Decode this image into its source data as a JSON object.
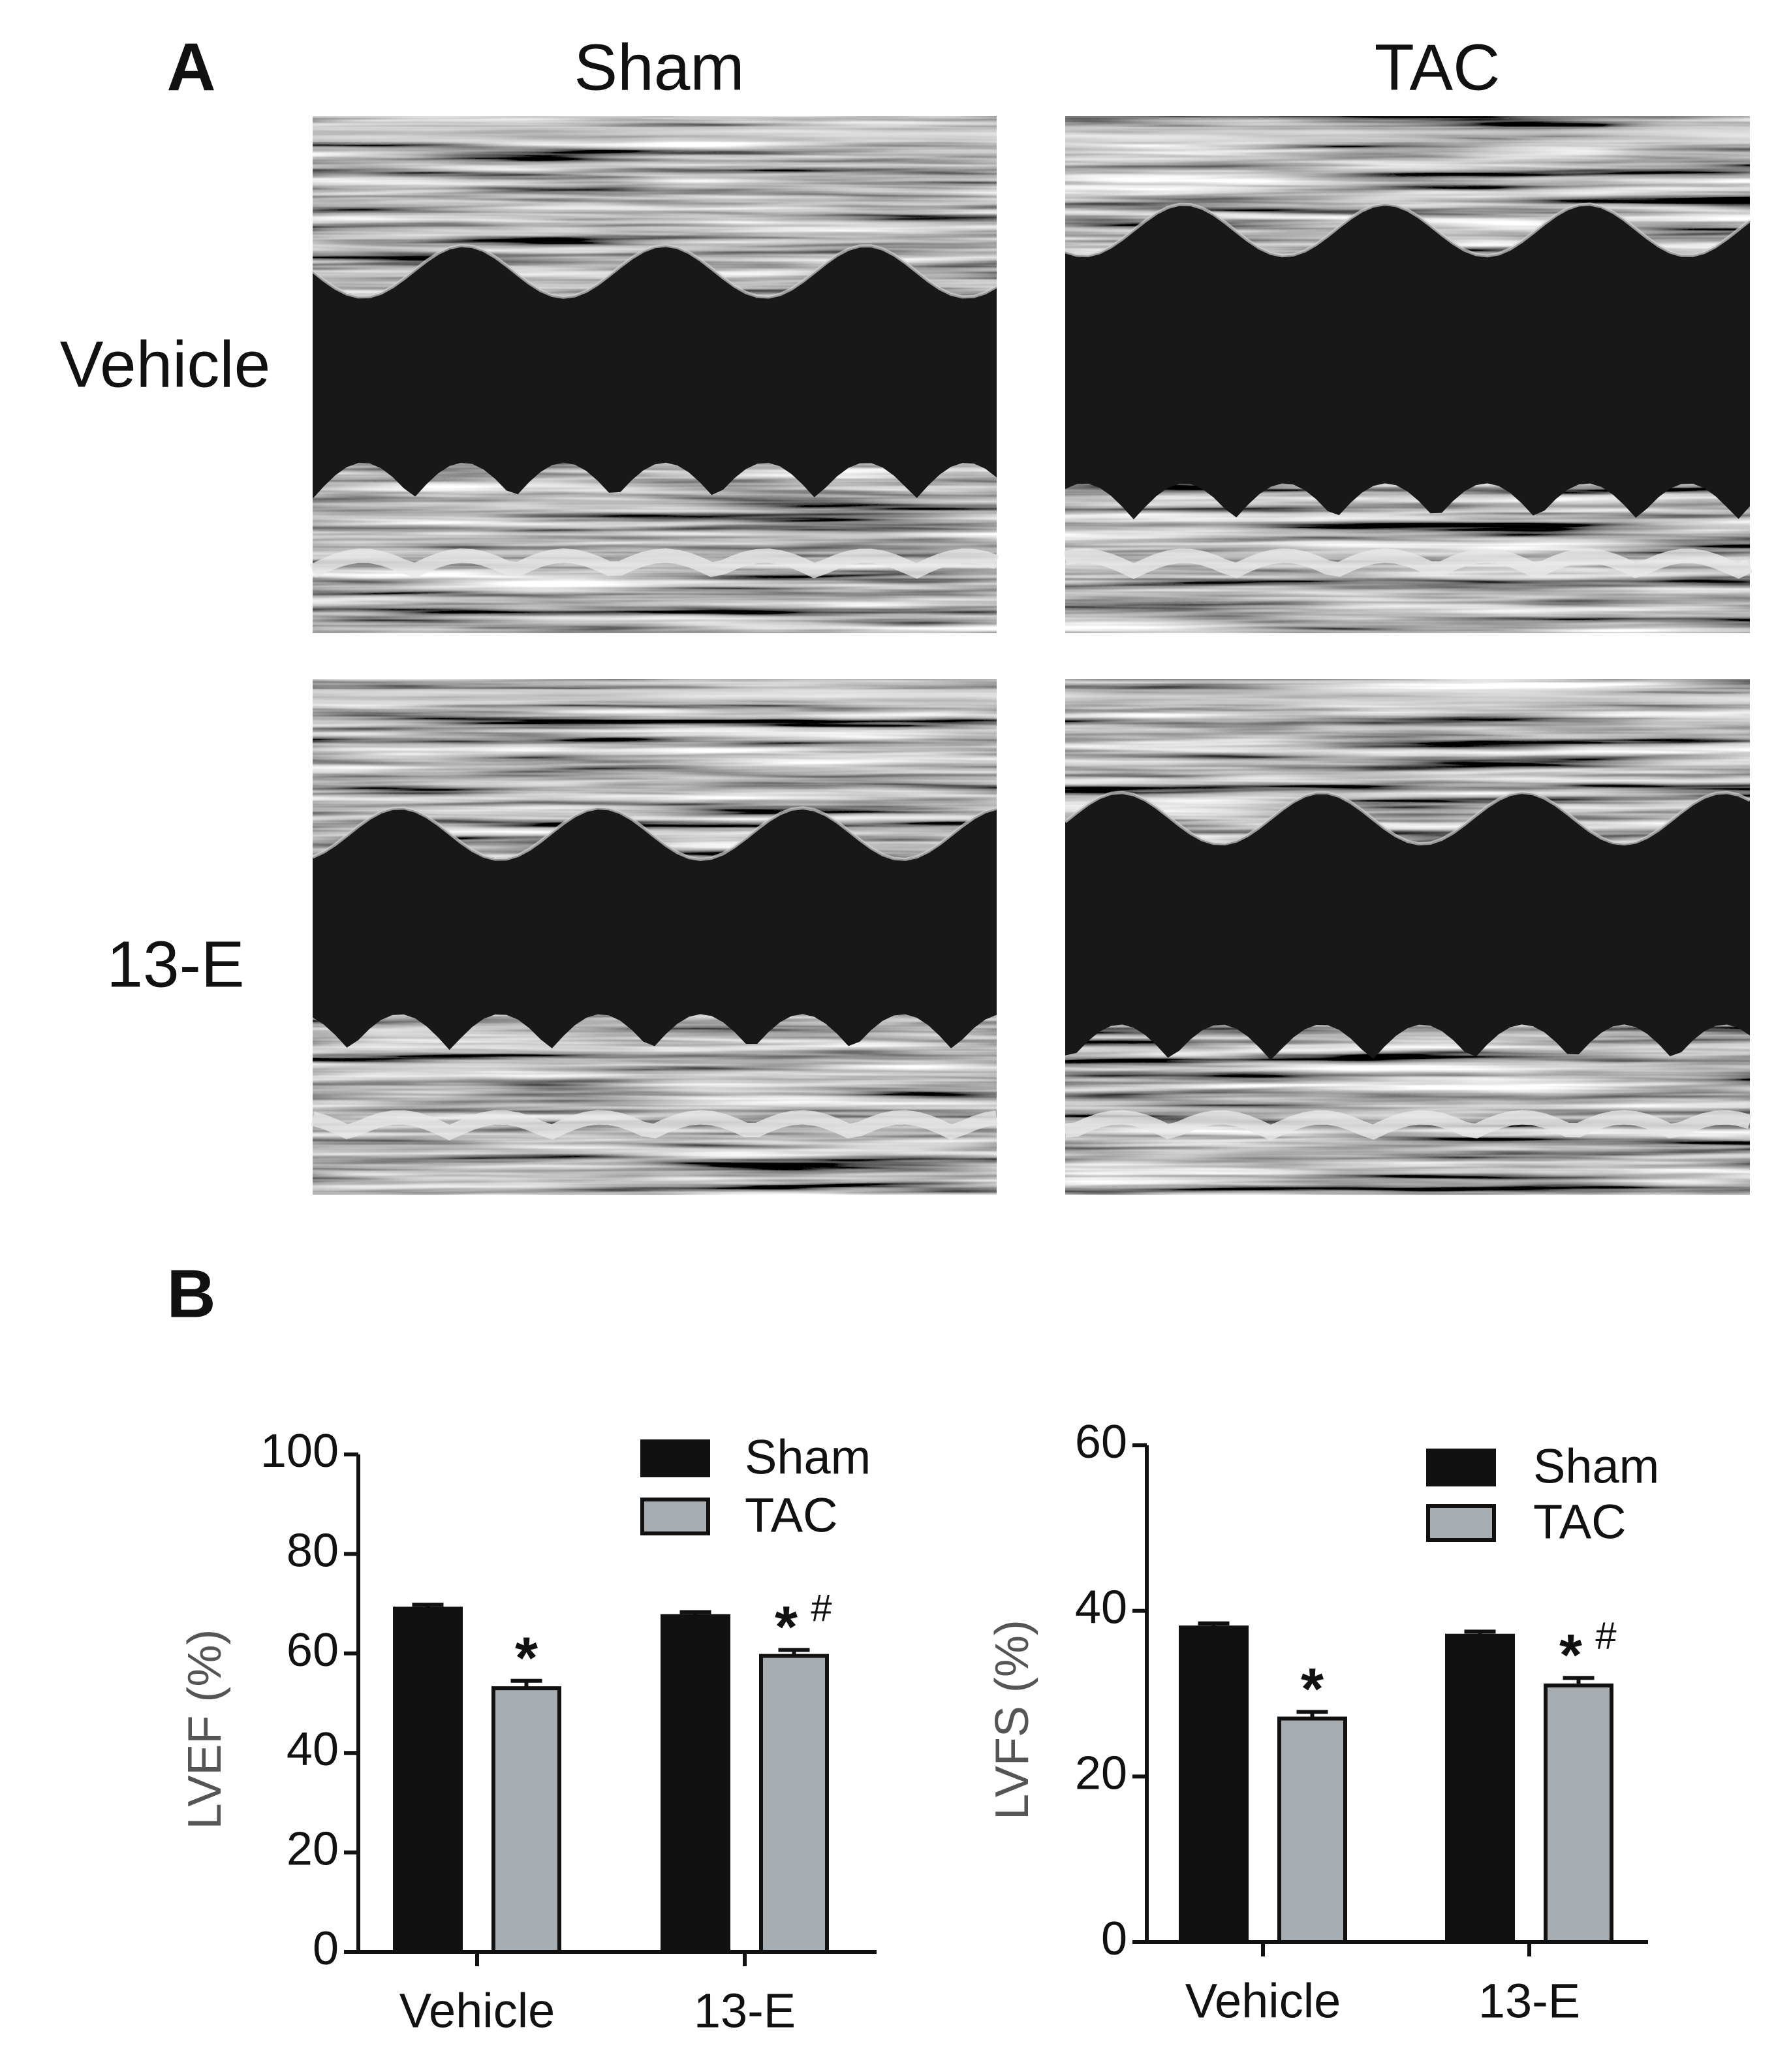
{
  "panel_a": {
    "label": "A",
    "columns": [
      "Sham",
      "TAC"
    ],
    "rows": [
      "Vehicle",
      "13-E"
    ]
  },
  "panel_b": {
    "label": "B"
  },
  "chart_data": [
    {
      "type": "bar",
      "ylabel": "LVEF (%)",
      "categories": [
        "Vehicle",
        "13-E"
      ],
      "series": [
        {
          "name": "Sham",
          "color": "#111111",
          "values": [
            69,
            67.5
          ],
          "errors": [
            0.8,
            0.8
          ],
          "annotations": [
            [],
            []
          ]
        },
        {
          "name": "TAC",
          "color": "#a7acb1",
          "values": [
            53,
            59.5
          ],
          "errors": [
            1.5,
            1.2
          ],
          "annotations": [
            [
              "*"
            ],
            [
              "*",
              "#"
            ]
          ]
        }
      ],
      "ylim": [
        0,
        100
      ],
      "yticks": [
        0,
        20,
        40,
        60,
        80,
        100
      ],
      "legend": "upper right"
    },
    {
      "type": "bar",
      "ylabel": "LVFS (%)",
      "categories": [
        "Vehicle",
        "13-E"
      ],
      "series": [
        {
          "name": "Sham",
          "color": "#111111",
          "values": [
            38,
            37
          ],
          "errors": [
            0.5,
            0.5
          ],
          "annotations": [
            [],
            []
          ]
        },
        {
          "name": "TAC",
          "color": "#a7acb1",
          "values": [
            27,
            31
          ],
          "errors": [
            0.8,
            0.9
          ],
          "annotations": [
            [
              "*"
            ],
            [
              "*",
              "#"
            ]
          ]
        }
      ],
      "ylim": [
        0,
        60
      ],
      "yticks": [
        0,
        20,
        40,
        60
      ],
      "legend": "upper right"
    }
  ]
}
